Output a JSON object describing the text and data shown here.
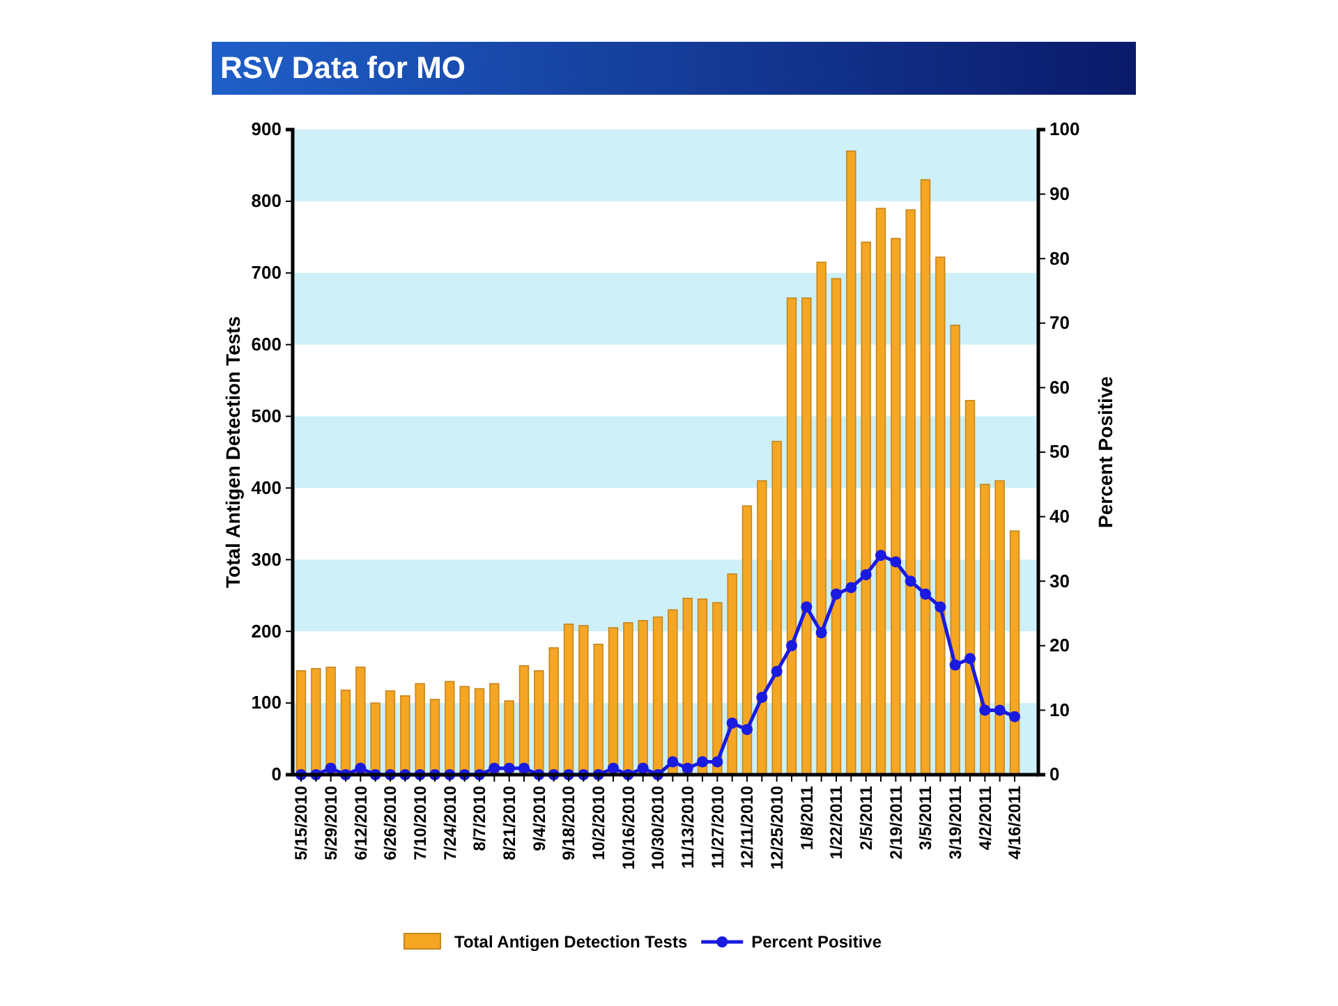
{
  "chart_data": {
    "type": "bar",
    "title": "RSV Data for MO",
    "ylabel": "Total Antigen Detection Tests",
    "y2label": "Percent Positive",
    "categories": [
      "5/15/2010",
      null,
      "5/29/2010",
      null,
      "6/12/2010",
      null,
      "6/26/2010",
      null,
      "7/10/2010",
      null,
      "7/24/2010",
      null,
      "8/7/2010",
      null,
      "8/21/2010",
      null,
      "9/4/2010",
      null,
      "9/18/2010",
      null,
      "10/2/2010",
      null,
      "10/16/2010",
      null,
      "10/30/2010",
      null,
      "11/13/2010",
      null,
      "11/27/2010",
      null,
      "12/11/2010",
      null,
      "12/25/2010",
      null,
      "1/8/2011",
      null,
      "1/22/2011",
      null,
      "2/5/2011",
      null,
      "2/19/2011",
      null,
      "3/5/2011",
      null,
      "3/19/2011",
      null,
      "4/2/2011",
      null,
      "4/16/2011"
    ],
    "series": [
      {
        "name": "Total Antigen Detection Tests",
        "color": "#f5a623",
        "values": [
          145,
          148,
          150,
          118,
          150,
          100,
          117,
          110,
          127,
          105,
          130,
          123,
          120,
          127,
          103,
          152,
          145,
          177,
          210,
          208,
          182,
          205,
          212,
          215,
          220,
          230,
          246,
          245,
          240,
          280,
          375,
          410,
          465,
          665,
          665,
          715,
          692,
          870,
          743,
          790,
          748,
          788,
          830,
          722,
          627,
          522,
          405,
          410,
          340
        ]
      },
      {
        "name": "Percent Positive",
        "type": "line",
        "axis": "y2",
        "color": "#1a1ae0",
        "marker": "circle",
        "values": [
          0,
          0,
          1,
          0,
          1,
          0,
          0,
          0,
          0,
          0,
          0,
          0,
          0,
          1,
          1,
          1,
          0,
          0,
          0,
          0,
          0,
          1,
          0,
          1,
          0,
          2,
          1,
          2,
          2,
          8,
          7,
          12,
          16,
          20,
          26,
          22,
          28,
          29,
          31,
          34,
          33,
          30,
          28,
          26,
          17,
          18,
          10,
          10,
          9
        ]
      }
    ],
    "ylim": [
      0,
      900
    ],
    "yticks": [
      0,
      100,
      200,
      300,
      400,
      500,
      600,
      700,
      800,
      900
    ],
    "y2lim": [
      0,
      100
    ],
    "y2ticks": [
      0,
      10,
      20,
      30,
      40,
      50,
      60,
      70,
      80,
      90,
      100
    ],
    "bands": [
      {
        "axis": "y",
        "from": 0,
        "to": 100,
        "color": "#cdf0f9"
      },
      {
        "axis": "y",
        "from": 200,
        "to": 300,
        "color": "#cdf0f9"
      },
      {
        "axis": "y",
        "from": 400,
        "to": 500,
        "color": "#cdf0f9"
      },
      {
        "axis": "y",
        "from": 600,
        "to": 700,
        "color": "#cdf0f9"
      },
      {
        "axis": "y",
        "from": 800,
        "to": 900,
        "color": "#cdf0f9"
      }
    ],
    "legend": "bottom"
  }
}
